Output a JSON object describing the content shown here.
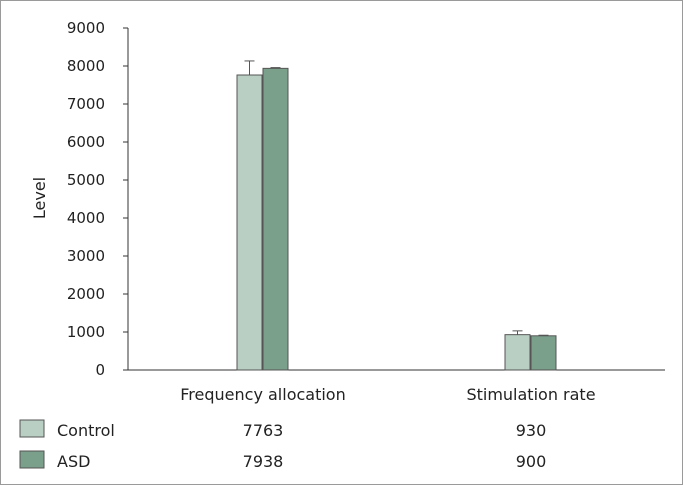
{
  "chart_data": {
    "type": "bar",
    "title": "",
    "xlabel": "",
    "ylabel": "Level",
    "ylim": [
      0,
      9000
    ],
    "yticks": [
      "0",
      "1000",
      "2000",
      "3000",
      "4000",
      "5000",
      "6000",
      "7000",
      "8000",
      "9000"
    ],
    "categories": [
      "Frequency allocation",
      "Stimulation rate"
    ],
    "series": [
      {
        "name": "Control",
        "values": [
          7763,
          930
        ],
        "value_labels": [
          "7763",
          "930"
        ],
        "error": [
          370,
          100
        ],
        "color": "#b9cfc3"
      },
      {
        "name": "ASD",
        "values": [
          7938,
          900
        ],
        "value_labels": [
          "7938",
          "900"
        ],
        "error": [
          20,
          15
        ],
        "color": "#7aa08c"
      }
    ],
    "grid": false,
    "legend": "bottom-table"
  }
}
